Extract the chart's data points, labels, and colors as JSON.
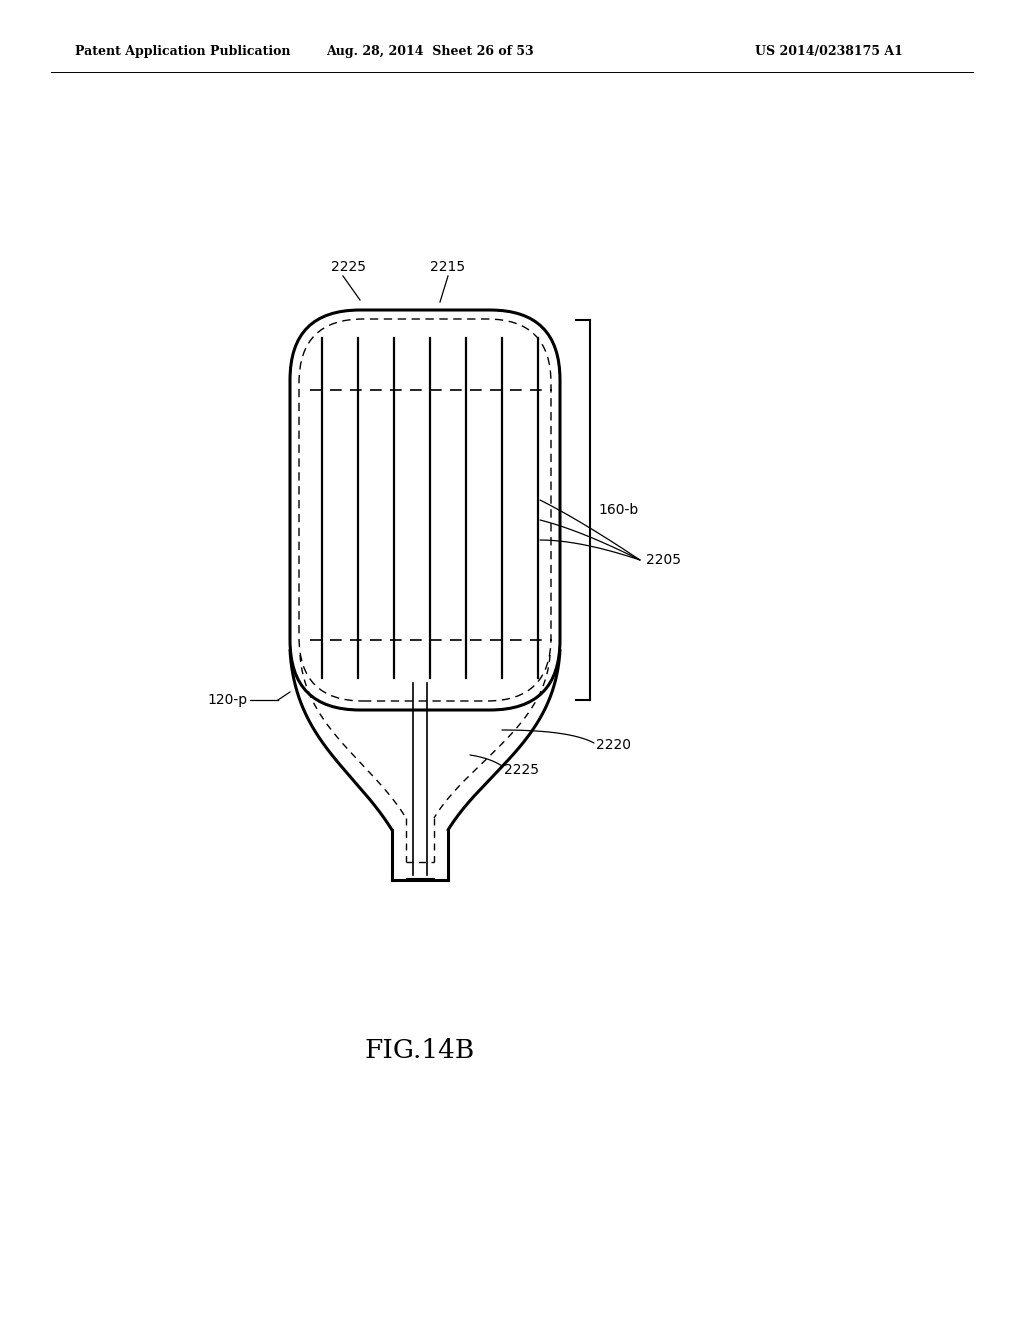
{
  "bg_color": "#ffffff",
  "line_color": "#000000",
  "header_left": "Patent Application Publication",
  "header_mid": "Aug. 28, 2014  Sheet 26 of 53",
  "header_right": "US 2014/0238175 A1",
  "fig_label": "FIG.14B",
  "labels": {
    "2225_top": "2225",
    "2215": "2215",
    "160b": "160-b",
    "2205": "2205",
    "120p": "120-p",
    "2220": "2220",
    "2225_bot": "2225"
  }
}
